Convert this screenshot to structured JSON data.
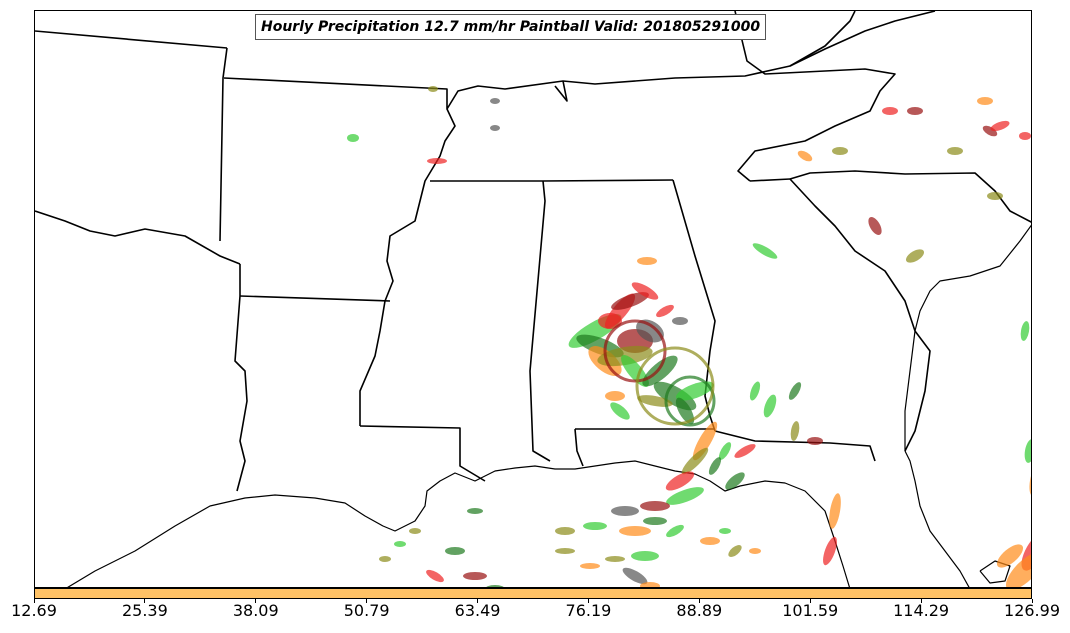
{
  "title": "Hourly Precipitation 12.7 mm/hr Paintball Valid: 201805291000",
  "colorbar": {
    "color": "#ffc266",
    "tick_labels": [
      "12.69",
      "25.39",
      "38.09",
      "50.79",
      "63.49",
      "76.19",
      "88.89",
      "101.59",
      "114.29",
      "126.99"
    ]
  },
  "colors": {
    "boundary": "#000000",
    "paint_green": "#33cc33",
    "paint_dark_green": "#1f7a1f",
    "paint_red": "#ee2222",
    "paint_dark_red": "#991111",
    "paint_orange": "#ff8c1a",
    "paint_olive": "#8c8c1a",
    "paint_gray": "#555555"
  }
}
